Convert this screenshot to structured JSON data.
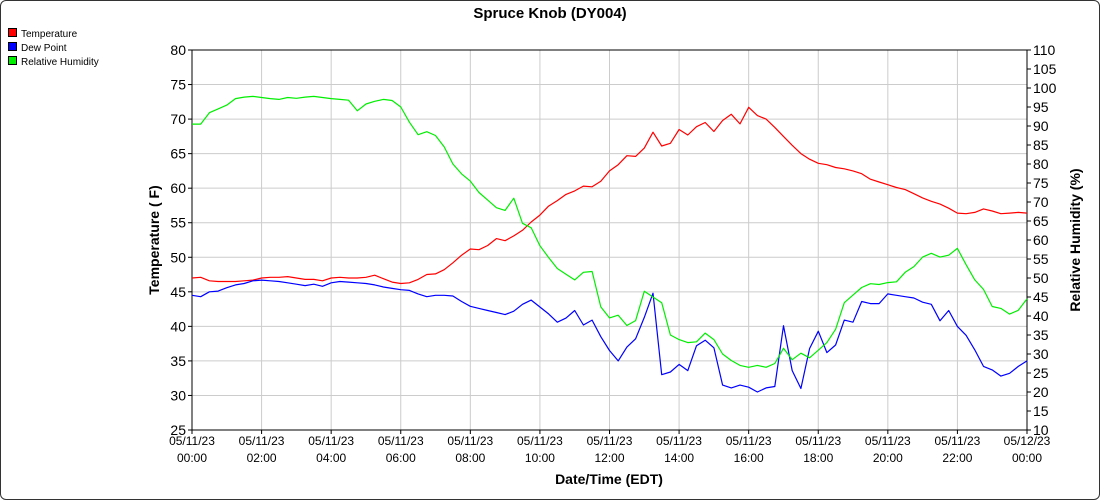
{
  "title": "Spruce Knob (DY004)",
  "colors": {
    "temperature": "#ff0000",
    "dew_point": "#0000ff",
    "relative_humidity": "#00ee00",
    "grid": "#cccccc",
    "axis": "#000000"
  },
  "chart_data": {
    "type": "line",
    "title": "Spruce Knob (DY004)",
    "xlabel": "Date/Time (EDT)",
    "ylabel_left": "Temperature ( F)",
    "ylabel_right": "Relative Humidity (%)",
    "xlim_hours": [
      0,
      24
    ],
    "ylim_left": [
      25,
      80
    ],
    "ylim_right": [
      10,
      110
    ],
    "grid": true,
    "legend_position": "top-left",
    "x_ticks": [
      {
        "hour": 0,
        "date": "05/11/23",
        "time": "00:00"
      },
      {
        "hour": 2,
        "date": "05/11/23",
        "time": "02:00"
      },
      {
        "hour": 4,
        "date": "05/11/23",
        "time": "04:00"
      },
      {
        "hour": 6,
        "date": "05/11/23",
        "time": "06:00"
      },
      {
        "hour": 8,
        "date": "05/11/23",
        "time": "08:00"
      },
      {
        "hour": 10,
        "date": "05/11/23",
        "time": "10:00"
      },
      {
        "hour": 12,
        "date": "05/11/23",
        "time": "12:00"
      },
      {
        "hour": 14,
        "date": "05/11/23",
        "time": "14:00"
      },
      {
        "hour": 16,
        "date": "05/11/23",
        "time": "16:00"
      },
      {
        "hour": 18,
        "date": "05/11/23",
        "time": "18:00"
      },
      {
        "hour": 20,
        "date": "05/11/23",
        "time": "20:00"
      },
      {
        "hour": 22,
        "date": "05/11/23",
        "time": "22:00"
      },
      {
        "hour": 24,
        "date": "05/12/23",
        "time": "00:00"
      }
    ],
    "y_ticks_left": [
      "25",
      "30",
      "35",
      "40",
      "45",
      "50",
      "55",
      "60",
      "65",
      "70",
      "75",
      "80"
    ],
    "y_ticks_right": [
      "10",
      "15",
      "20",
      "25",
      "30",
      "35",
      "40",
      "45",
      "50",
      "55",
      "60",
      "65",
      "70",
      "75",
      "80",
      "85",
      "90",
      "95",
      "100",
      "105",
      "110"
    ],
    "series": [
      {
        "name": "Temperature",
        "axis": "left",
        "color": "#ff0000",
        "points": [
          [
            0,
            47
          ],
          [
            0.25,
            47.1
          ],
          [
            0.5,
            46.6
          ],
          [
            0.75,
            46.5
          ],
          [
            1,
            46.5
          ],
          [
            1.25,
            46.5
          ],
          [
            1.5,
            46.6
          ],
          [
            1.75,
            46.7
          ],
          [
            2,
            47
          ],
          [
            2.25,
            47.1
          ],
          [
            2.5,
            47.1
          ],
          [
            2.75,
            47.2
          ],
          [
            3,
            47
          ],
          [
            3.25,
            46.8
          ],
          [
            3.5,
            46.8
          ],
          [
            3.75,
            46.6
          ],
          [
            4,
            47
          ],
          [
            4.25,
            47.1
          ],
          [
            4.5,
            47
          ],
          [
            4.75,
            47
          ],
          [
            5,
            47.1
          ],
          [
            5.25,
            47.4
          ],
          [
            5.5,
            46.9
          ],
          [
            5.75,
            46.4
          ],
          [
            6,
            46.2
          ],
          [
            6.25,
            46.3
          ],
          [
            6.5,
            46.8
          ],
          [
            6.75,
            47.5
          ],
          [
            7,
            47.6
          ],
          [
            7.25,
            48.2
          ],
          [
            7.5,
            49.2
          ],
          [
            7.75,
            50.3
          ],
          [
            8,
            51.2
          ],
          [
            8.25,
            51.1
          ],
          [
            8.5,
            51.7
          ],
          [
            8.75,
            52.7
          ],
          [
            9,
            52.4
          ],
          [
            9.25,
            53.1
          ],
          [
            9.5,
            53.9
          ],
          [
            9.75,
            55.1
          ],
          [
            10,
            56.1
          ],
          [
            10.25,
            57.4
          ],
          [
            10.5,
            58.2
          ],
          [
            10.75,
            59.1
          ],
          [
            11,
            59.6
          ],
          [
            11.25,
            60.3
          ],
          [
            11.5,
            60.2
          ],
          [
            11.75,
            61
          ],
          [
            12,
            62.5
          ],
          [
            12.25,
            63.4
          ],
          [
            12.5,
            64.7
          ],
          [
            12.75,
            64.6
          ],
          [
            13,
            65.8
          ],
          [
            13.25,
            68.1
          ],
          [
            13.5,
            66.1
          ],
          [
            13.75,
            66.5
          ],
          [
            14,
            68.5
          ],
          [
            14.25,
            67.7
          ],
          [
            14.5,
            68.9
          ],
          [
            14.75,
            69.5
          ],
          [
            15,
            68.2
          ],
          [
            15.25,
            69.8
          ],
          [
            15.5,
            70.7
          ],
          [
            15.75,
            69.3
          ],
          [
            16,
            71.7
          ],
          [
            16.25,
            70.5
          ],
          [
            16.5,
            70
          ],
          [
            16.75,
            68.8
          ],
          [
            17,
            67.5
          ],
          [
            17.25,
            66.2
          ],
          [
            17.5,
            65
          ],
          [
            17.75,
            64.2
          ],
          [
            18,
            63.6
          ],
          [
            18.25,
            63.4
          ],
          [
            18.5,
            63
          ],
          [
            18.75,
            62.8
          ],
          [
            19,
            62.5
          ],
          [
            19.25,
            62.1
          ],
          [
            19.5,
            61.3
          ],
          [
            19.75,
            60.9
          ],
          [
            20,
            60.5
          ],
          [
            20.25,
            60.1
          ],
          [
            20.5,
            59.8
          ],
          [
            20.75,
            59.2
          ],
          [
            21,
            58.6
          ],
          [
            21.25,
            58.1
          ],
          [
            21.5,
            57.7
          ],
          [
            21.75,
            57.1
          ],
          [
            22,
            56.4
          ],
          [
            22.25,
            56.3
          ],
          [
            22.5,
            56.5
          ],
          [
            22.75,
            57
          ],
          [
            23,
            56.7
          ],
          [
            23.25,
            56.3
          ],
          [
            23.5,
            56.4
          ],
          [
            23.75,
            56.5
          ],
          [
            24,
            56.4
          ]
        ]
      },
      {
        "name": "Dew Point",
        "axis": "left",
        "color": "#0000ff",
        "points": [
          [
            0,
            44.5
          ],
          [
            0.25,
            44.3
          ],
          [
            0.5,
            45
          ],
          [
            0.75,
            45.1
          ],
          [
            1,
            45.6
          ],
          [
            1.25,
            46
          ],
          [
            1.5,
            46.2
          ],
          [
            1.75,
            46.6
          ],
          [
            2,
            46.7
          ],
          [
            2.25,
            46.6
          ],
          [
            2.5,
            46.5
          ],
          [
            2.75,
            46.3
          ],
          [
            3,
            46.1
          ],
          [
            3.25,
            45.9
          ],
          [
            3.5,
            46.1
          ],
          [
            3.75,
            45.8
          ],
          [
            4,
            46.3
          ],
          [
            4.25,
            46.5
          ],
          [
            4.5,
            46.4
          ],
          [
            4.75,
            46.3
          ],
          [
            5,
            46.2
          ],
          [
            5.25,
            46
          ],
          [
            5.5,
            45.7
          ],
          [
            5.75,
            45.5
          ],
          [
            6,
            45.3
          ],
          [
            6.25,
            45.2
          ],
          [
            6.5,
            44.7
          ],
          [
            6.75,
            44.3
          ],
          [
            7,
            44.5
          ],
          [
            7.25,
            44.5
          ],
          [
            7.5,
            44.4
          ],
          [
            7.75,
            43.6
          ],
          [
            8,
            42.9
          ],
          [
            8.25,
            42.6
          ],
          [
            8.5,
            42.3
          ],
          [
            8.75,
            42
          ],
          [
            9,
            41.7
          ],
          [
            9.25,
            42.2
          ],
          [
            9.5,
            43.2
          ],
          [
            9.75,
            43.8
          ],
          [
            10,
            42.8
          ],
          [
            10.25,
            41.8
          ],
          [
            10.5,
            40.6
          ],
          [
            10.75,
            41.2
          ],
          [
            11,
            42.3
          ],
          [
            11.25,
            40.2
          ],
          [
            11.5,
            40.9
          ],
          [
            11.75,
            38.5
          ],
          [
            12,
            36.5
          ],
          [
            12.25,
            35
          ],
          [
            12.5,
            37
          ],
          [
            12.75,
            38.2
          ],
          [
            13,
            41.3
          ],
          [
            13.25,
            44.8
          ],
          [
            13.5,
            33
          ],
          [
            13.75,
            33.4
          ],
          [
            14,
            34.5
          ],
          [
            14.25,
            33.6
          ],
          [
            14.5,
            37.2
          ],
          [
            14.75,
            38
          ],
          [
            15,
            36.9
          ],
          [
            15.25,
            31.5
          ],
          [
            15.5,
            31.1
          ],
          [
            15.75,
            31.5
          ],
          [
            16,
            31.2
          ],
          [
            16.25,
            30.5
          ],
          [
            16.5,
            31.1
          ],
          [
            16.75,
            31.3
          ],
          [
            17,
            40.1
          ],
          [
            17.25,
            33.6
          ],
          [
            17.5,
            31
          ],
          [
            17.75,
            36.8
          ],
          [
            18,
            39.3
          ],
          [
            18.25,
            36.2
          ],
          [
            18.5,
            37.3
          ],
          [
            18.75,
            40.9
          ],
          [
            19,
            40.6
          ],
          [
            19.25,
            43.6
          ],
          [
            19.5,
            43.3
          ],
          [
            19.75,
            43.3
          ],
          [
            20,
            44.7
          ],
          [
            20.25,
            44.5
          ],
          [
            20.5,
            44.3
          ],
          [
            20.75,
            44.1
          ],
          [
            21,
            43.5
          ],
          [
            21.25,
            43.2
          ],
          [
            21.5,
            40.8
          ],
          [
            21.75,
            42.3
          ],
          [
            22,
            40
          ],
          [
            22.25,
            38.7
          ],
          [
            22.5,
            36.6
          ],
          [
            22.75,
            34.2
          ],
          [
            23,
            33.7
          ],
          [
            23.25,
            32.8
          ],
          [
            23.5,
            33.2
          ],
          [
            23.75,
            34.2
          ],
          [
            24,
            35
          ]
        ]
      },
      {
        "name": "Relative Humidity",
        "axis": "right",
        "color": "#00ee00",
        "points": [
          [
            0,
            90.5
          ],
          [
            0.25,
            90.5
          ],
          [
            0.5,
            93.5
          ],
          [
            0.75,
            94.5
          ],
          [
            1,
            95.5
          ],
          [
            1.25,
            97.2
          ],
          [
            1.5,
            97.6
          ],
          [
            1.75,
            97.8
          ],
          [
            2,
            97.5
          ],
          [
            2.25,
            97.2
          ],
          [
            2.5,
            97
          ],
          [
            2.75,
            97.5
          ],
          [
            3,
            97.3
          ],
          [
            3.25,
            97.6
          ],
          [
            3.5,
            97.8
          ],
          [
            3.75,
            97.5
          ],
          [
            4,
            97.2
          ],
          [
            4.25,
            97
          ],
          [
            4.5,
            96.8
          ],
          [
            4.75,
            94
          ],
          [
            5,
            95.8
          ],
          [
            5.25,
            96.5
          ],
          [
            5.5,
            97
          ],
          [
            5.75,
            96.7
          ],
          [
            6,
            95
          ],
          [
            6.25,
            91
          ],
          [
            6.5,
            87.7
          ],
          [
            6.75,
            88.5
          ],
          [
            7,
            87.5
          ],
          [
            7.25,
            84.5
          ],
          [
            7.5,
            80
          ],
          [
            7.75,
            77.4
          ],
          [
            8,
            75.5
          ],
          [
            8.25,
            72.5
          ],
          [
            8.5,
            70.5
          ],
          [
            8.75,
            68.5
          ],
          [
            9,
            67.8
          ],
          [
            9.25,
            71
          ],
          [
            9.5,
            64.4
          ],
          [
            9.75,
            63.2
          ],
          [
            10,
            58.5
          ],
          [
            10.25,
            55.4
          ],
          [
            10.5,
            52.5
          ],
          [
            10.75,
            51
          ],
          [
            11,
            49.5
          ],
          [
            11.25,
            51.5
          ],
          [
            11.5,
            51.7
          ],
          [
            11.75,
            42.4
          ],
          [
            12,
            39.5
          ],
          [
            12.25,
            40.2
          ],
          [
            12.5,
            37.5
          ],
          [
            12.75,
            38.8
          ],
          [
            13,
            46.5
          ],
          [
            13.25,
            45
          ],
          [
            13.5,
            43.5
          ],
          [
            13.75,
            35
          ],
          [
            14,
            33.8
          ],
          [
            14.25,
            33
          ],
          [
            14.5,
            33.2
          ],
          [
            14.75,
            35.5
          ],
          [
            15,
            33.8
          ],
          [
            15.25,
            30
          ],
          [
            15.5,
            28.3
          ],
          [
            15.75,
            27
          ],
          [
            16,
            26.5
          ],
          [
            16.25,
            27
          ],
          [
            16.5,
            26.5
          ],
          [
            16.75,
            27.5
          ],
          [
            17,
            31.5
          ],
          [
            17.25,
            28.5
          ],
          [
            17.5,
            30.2
          ],
          [
            17.75,
            29
          ],
          [
            18,
            31
          ],
          [
            18.25,
            33
          ],
          [
            18.5,
            36.5
          ],
          [
            18.75,
            43.5
          ],
          [
            19,
            45.5
          ],
          [
            19.25,
            47.5
          ],
          [
            19.5,
            48.5
          ],
          [
            19.75,
            48.3
          ],
          [
            20,
            48.8
          ],
          [
            20.25,
            49
          ],
          [
            20.5,
            51.5
          ],
          [
            20.75,
            53
          ],
          [
            21,
            55.5
          ],
          [
            21.25,
            56.5
          ],
          [
            21.5,
            55.5
          ],
          [
            21.75,
            56
          ],
          [
            22,
            57.8
          ],
          [
            22.25,
            53.5
          ],
          [
            22.5,
            49.5
          ],
          [
            22.75,
            47
          ],
          [
            23,
            42.5
          ],
          [
            23.25,
            42
          ],
          [
            23.5,
            40.5
          ],
          [
            23.75,
            41.5
          ],
          [
            24,
            44.5
          ]
        ]
      }
    ]
  }
}
